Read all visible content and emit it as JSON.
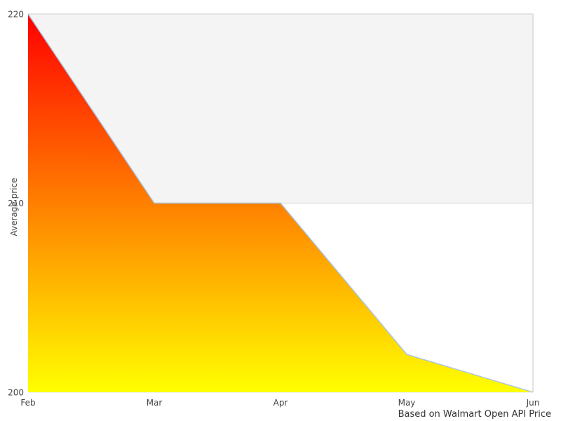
{
  "chart_data": {
    "type": "area",
    "categories": [
      "Feb",
      "Mar",
      "Apr",
      "May",
      "Jun"
    ],
    "values": [
      220,
      210,
      210,
      202,
      200
    ],
    "title": "",
    "xlabel": "",
    "ylabel": "Average price",
    "caption": "Based on Walmart Open API Price",
    "ylim": [
      200,
      220
    ],
    "yticks": [
      220,
      210,
      200
    ],
    "band": {
      "from": 210,
      "to": 220
    },
    "legend": "none",
    "grid": "horizontal",
    "colors": {
      "gradient_top": "#ff0000",
      "gradient_bottom": "#ffff00",
      "line": "#a8c2e0",
      "band_fill": "#f4f4f4",
      "gridline": "#dcdcdc",
      "gridline_soft": "#e6e6e6",
      "plot_border": "#d9d9d9",
      "tick_text": "#444444",
      "caption_text": "#333333",
      "background": "#ffffff"
    }
  }
}
